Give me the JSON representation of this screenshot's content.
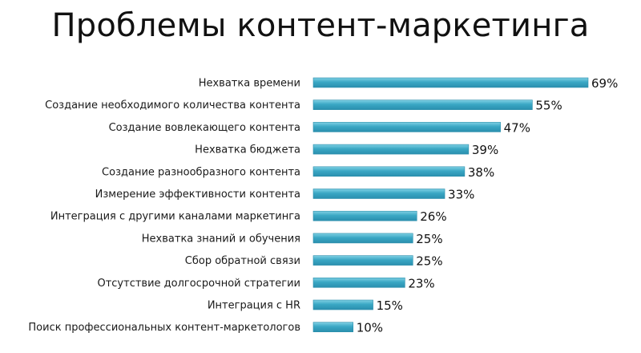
{
  "chart_data": {
    "type": "bar",
    "orientation": "horizontal",
    "title": "Проблемы контент-маркетинга",
    "categories": [
      "Нехватка времени",
      "Создание необходимого количества контента",
      "Создание вовлекающего контента",
      "Нехватка бюджета",
      "Создание разнообразного контента",
      "Измерение эффективности контента",
      "Интеграция с другими каналами маркетинга",
      "Нехватка знаний и обучения",
      "Сбор обратной связи",
      "Отсутствие долгосрочной стратегии",
      "Интеграция с HR",
      "Поиск профессиональных контент-маркетологов"
    ],
    "values": [
      69,
      55,
      47,
      39,
      38,
      33,
      26,
      25,
      25,
      23,
      15,
      10
    ],
    "value_labels": [
      "69%",
      "55%",
      "47%",
      "39%",
      "38%",
      "33%",
      "26%",
      "25%",
      "25%",
      "23%",
      "15%",
      "10%"
    ],
    "xlim": [
      0,
      69
    ],
    "grid": false,
    "legend": "none",
    "bar_color": "#3aa7c4"
  }
}
